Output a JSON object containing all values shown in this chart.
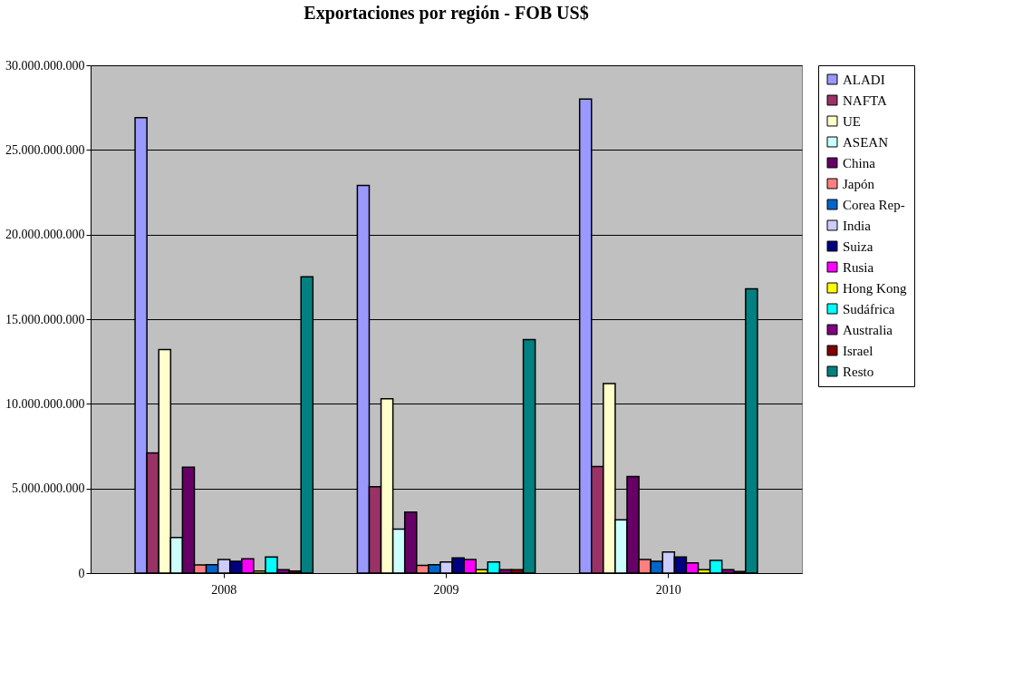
{
  "chart_data": {
    "type": "bar",
    "title": "Exportaciones por región - FOB US$",
    "categories": [
      "2008",
      "2009",
      "2010"
    ],
    "series": [
      {
        "name": "ALADI",
        "color": "#9999ff",
        "values": [
          26900000000,
          22900000000,
          28000000000
        ]
      },
      {
        "name": "NAFTA",
        "color": "#993366",
        "values": [
          7100000000,
          5100000000,
          6300000000
        ]
      },
      {
        "name": "UE",
        "color": "#ffffcc",
        "values": [
          13200000000,
          10300000000,
          11200000000
        ]
      },
      {
        "name": "ASEAN",
        "color": "#ccffff",
        "values": [
          2100000000,
          2600000000,
          3150000000
        ]
      },
      {
        "name": "China",
        "color": "#660066",
        "values": [
          6250000000,
          3600000000,
          5700000000
        ]
      },
      {
        "name": "Japón",
        "color": "#ff8080",
        "values": [
          480000000,
          450000000,
          800000000
        ]
      },
      {
        "name": "Corea Rep-",
        "color": "#0066cc",
        "values": [
          500000000,
          500000000,
          700000000
        ]
      },
      {
        "name": "India",
        "color": "#ccccff",
        "values": [
          800000000,
          650000000,
          1250000000
        ]
      },
      {
        "name": "Suiza",
        "color": "#000080",
        "values": [
          700000000,
          900000000,
          950000000
        ]
      },
      {
        "name": "Rusia",
        "color": "#ff00ff",
        "values": [
          850000000,
          800000000,
          600000000
        ]
      },
      {
        "name": "Hong Kong",
        "color": "#ffff00",
        "values": [
          120000000,
          200000000,
          200000000
        ]
      },
      {
        "name": "Sudáfrica",
        "color": "#00ffff",
        "values": [
          950000000,
          650000000,
          750000000
        ]
      },
      {
        "name": "Australia",
        "color": "#800080",
        "values": [
          200000000,
          200000000,
          200000000
        ]
      },
      {
        "name": "Israel",
        "color": "#800000",
        "values": [
          120000000,
          200000000,
          100000000
        ]
      },
      {
        "name": "Resto",
        "color": "#008080",
        "values": [
          17500000000,
          13800000000,
          16800000000
        ]
      }
    ],
    "ylim": [
      0,
      30000000000
    ],
    "yticks": [
      {
        "value": 0,
        "label": "0"
      },
      {
        "value": 5000000000,
        "label": "5.000.000.000"
      },
      {
        "value": 10000000000,
        "label": "10.000.000.000"
      },
      {
        "value": 15000000000,
        "label": "15.000.000.000"
      },
      {
        "value": 20000000000,
        "label": "20.000.000.000"
      },
      {
        "value": 25000000000,
        "label": "25.000.000.000"
      },
      {
        "value": 30000000000,
        "label": "30.000.000.000"
      }
    ],
    "grid": "y",
    "legend": "right"
  }
}
